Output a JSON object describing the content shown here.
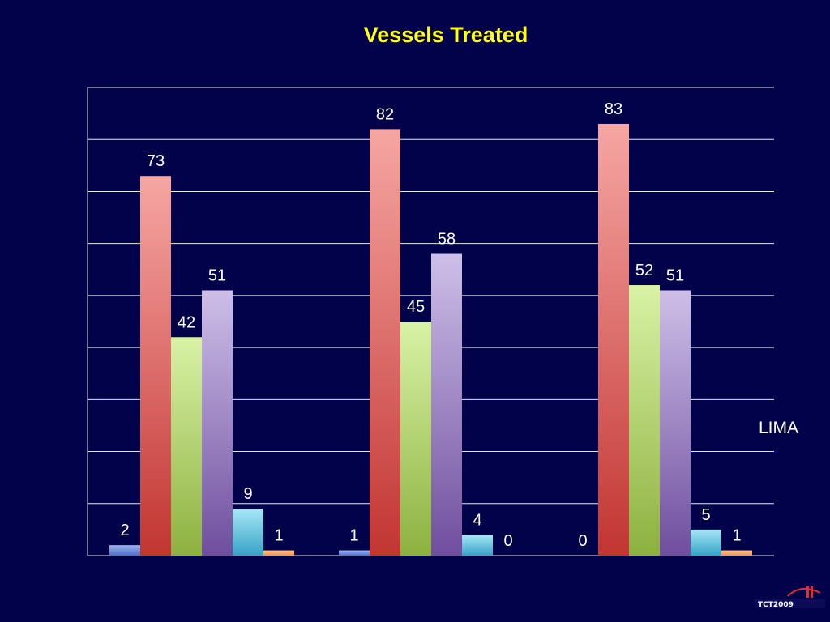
{
  "chart_data": {
    "type": "bar",
    "title": "Vessels Treated",
    "xlabel": "",
    "ylabel": "",
    "ylim": [
      0,
      90
    ],
    "grid": true,
    "groups": 3,
    "series": [
      {
        "values": [
          2,
          1,
          0
        ],
        "color_top": "#9fb6ef",
        "color_bottom": "#4e6fc7"
      },
      {
        "values": [
          73,
          82,
          83
        ],
        "color_top": "#f6a6a3",
        "color_bottom": "#c23532"
      },
      {
        "values": [
          42,
          45,
          52
        ],
        "color_top": "#d9f2a6",
        "color_bottom": "#8db13f"
      },
      {
        "values": [
          51,
          58,
          51
        ],
        "color_top": "#cdbfe8",
        "color_bottom": "#6f4e9e"
      },
      {
        "values": [
          9,
          4,
          5
        ],
        "color_top": "#a8e6f6",
        "color_bottom": "#36a3c7"
      },
      {
        "values": [
          1,
          0,
          1
        ],
        "color_top": "#ffc291",
        "color_bottom": "#f2934e"
      }
    ],
    "legend": {
      "visible_entry": "LIMA"
    }
  },
  "colors": {
    "background": "#02024a",
    "title": "#ffff1a",
    "grid": "#e6e6f0",
    "text": "#ffffff"
  },
  "logo": {
    "text": "TCT2009",
    "icon": "bridge-logo-icon"
  }
}
